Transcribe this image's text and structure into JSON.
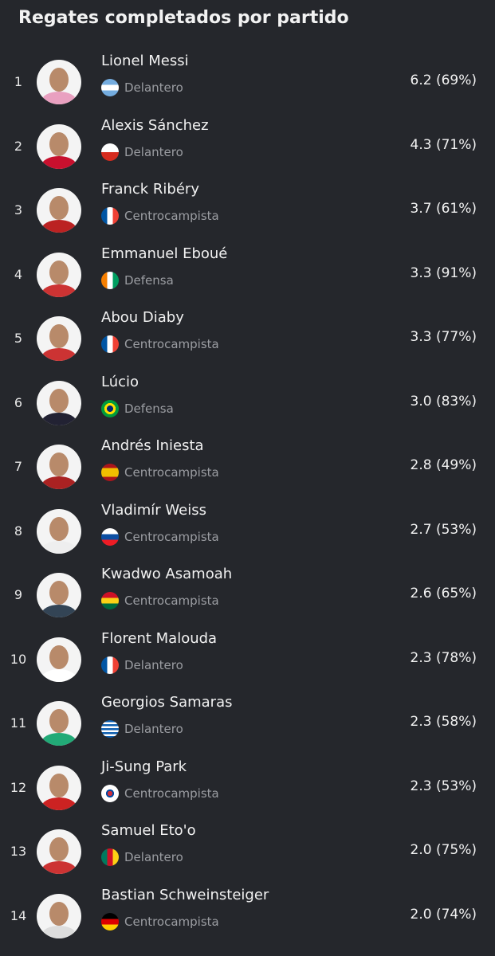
{
  "header": {
    "title": "Regates completados por partido"
  },
  "players": [
    {
      "rank": 1,
      "name": "Lionel Messi",
      "position": "Delantero",
      "stat": "6.2 (69%)"
    },
    {
      "rank": 2,
      "name": "Alexis Sánchez",
      "position": "Delantero",
      "stat": "4.3 (71%)"
    },
    {
      "rank": 3,
      "name": "Franck Ribéry",
      "position": "Centrocampista",
      "stat": "3.7 (61%)"
    },
    {
      "rank": 4,
      "name": "Emmanuel Eboué",
      "position": "Defensa",
      "stat": "3.3 (91%)"
    },
    {
      "rank": 5,
      "name": "Abou Diaby",
      "position": "Centrocampista",
      "stat": "3.3 (77%)"
    },
    {
      "rank": 6,
      "name": "Lúcio",
      "position": "Defensa",
      "stat": "3.0 (83%)"
    },
    {
      "rank": 7,
      "name": "Andrés Iniesta",
      "position": "Centrocampista",
      "stat": "2.8 (49%)"
    },
    {
      "rank": 8,
      "name": "Vladimír Weiss",
      "position": "Centrocampista",
      "stat": "2.7 (53%)"
    },
    {
      "rank": 9,
      "name": "Kwadwo Asamoah",
      "position": "Centrocampista",
      "stat": "2.6 (65%)"
    },
    {
      "rank": 10,
      "name": "Florent Malouda",
      "position": "Delantero",
      "stat": "2.3 (78%)"
    },
    {
      "rank": 11,
      "name": "Georgios Samaras",
      "position": "Delantero",
      "stat": "2.3 (58%)"
    },
    {
      "rank": 12,
      "name": "Ji-Sung Park",
      "position": "Centrocampista",
      "stat": "2.3 (53%)"
    },
    {
      "rank": 13,
      "name": "Samuel Eto'o",
      "position": "Delantero",
      "stat": "2.0 (75%)"
    },
    {
      "rank": 14,
      "name": "Bastian Schweinsteiger",
      "position": "Centrocampista",
      "stat": "2.0 (74%)"
    }
  ]
}
